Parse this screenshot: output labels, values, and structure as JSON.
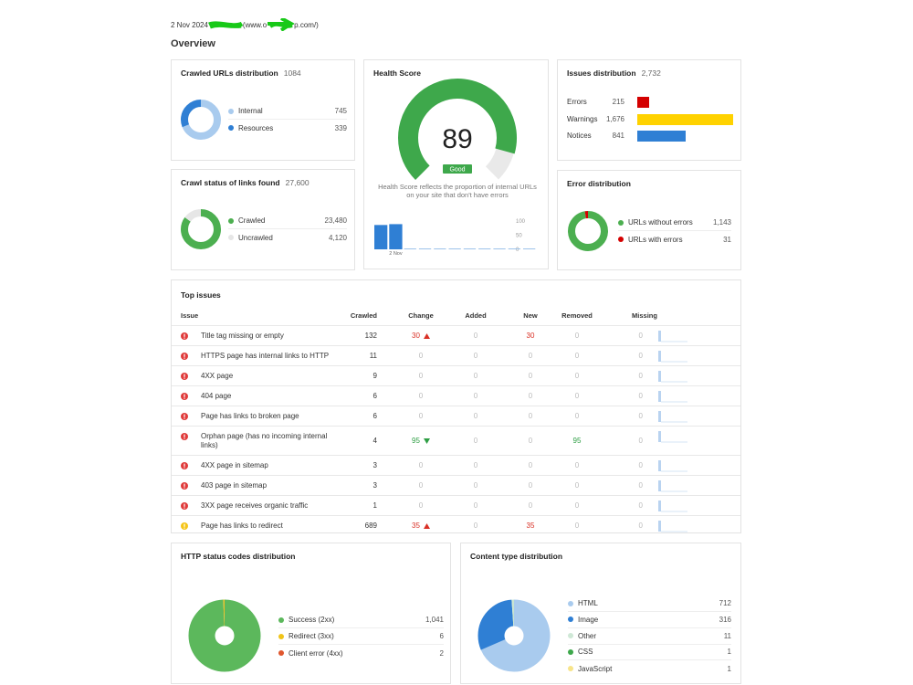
{
  "header": {
    "date": "2 Nov 2024",
    "url_start": "(www.o",
    "url_end": "p.com/)"
  },
  "title": "Overview",
  "crawled_urls": {
    "title": "Crawled URLs distribution",
    "total": 1084,
    "items": [
      {
        "label": "Internal",
        "value": 745,
        "color": "#a9cbee"
      },
      {
        "label": "Resources",
        "value": 339,
        "color": "#2f7fd4"
      }
    ]
  },
  "crawl_status": {
    "title": "Crawl status of links found",
    "total": {
      "value": 27600,
      "label": "27,600"
    },
    "items": [
      {
        "label": "Crawled",
        "value": {
          "value": 23480,
          "label": "23,480"
        },
        "color": "#4caf50"
      },
      {
        "label": "Uncrawled",
        "value": {
          "value": 4120,
          "label": "4,120"
        },
        "color": "#e6e6e6"
      }
    ]
  },
  "health": {
    "title": "Health Score",
    "score": 89,
    "badge": "Good",
    "color": "#3ea84b",
    "description": "Health Score reflects the proportion of internal URLs on your site that don't have errors",
    "history": {
      "categories": [
        null,
        "2 Nov",
        null,
        null,
        null,
        null,
        null,
        null,
        null,
        null,
        null
      ],
      "values": [
        86,
        89,
        null,
        null,
        null,
        null,
        null,
        null,
        null,
        null,
        null
      ],
      "ylim": [
        0,
        100
      ],
      "yticks": [
        0,
        50,
        100
      ],
      "color": "#2f7fd4"
    }
  },
  "issues_distribution": {
    "title": "Issues distribution",
    "total": {
      "value": 2732,
      "label": "2,732"
    },
    "items": [
      {
        "label": "Errors",
        "value": 215,
        "color": "#d40000"
      },
      {
        "label": "Warnings",
        "value": {
          "value": 1676,
          "label": "1,676"
        },
        "color": "#ffd200"
      },
      {
        "label": "Notices",
        "value": 841,
        "color": "#2f7fd4"
      }
    ]
  },
  "error_distribution": {
    "title": "Error distribution",
    "items": [
      {
        "label": "URLs without errors",
        "value": {
          "value": 1143,
          "label": "1,143"
        },
        "color": "#4caf50"
      },
      {
        "label": "URLs with errors",
        "value": 31,
        "color": "#d40000"
      }
    ]
  },
  "top_issues": {
    "title": "Top issues",
    "columns": [
      "Issue",
      "Crawled",
      "Change",
      "Added",
      "New",
      "Removed",
      "Missing"
    ],
    "rows": [
      {
        "severity": "error",
        "issue": "Title tag missing or empty",
        "crawled": 132,
        "change": 30,
        "change_direction": "up",
        "added": 0,
        "new": 30,
        "removed": 0,
        "missing": 0
      },
      {
        "severity": "error",
        "issue": "HTTPS page has internal links to HTTP",
        "crawled": 11,
        "change": 0,
        "added": 0,
        "new": 0,
        "removed": 0,
        "missing": 0
      },
      {
        "severity": "error",
        "issue": "4XX page",
        "crawled": 9,
        "change": 0,
        "added": 0,
        "new": 0,
        "removed": 0,
        "missing": 0
      },
      {
        "severity": "error",
        "issue": "404 page",
        "crawled": 6,
        "change": 0,
        "added": 0,
        "new": 0,
        "removed": 0,
        "missing": 0
      },
      {
        "severity": "error",
        "issue": "Page has links to broken page",
        "crawled": 6,
        "change": 0,
        "added": 0,
        "new": 0,
        "removed": 0,
        "missing": 0
      },
      {
        "severity": "error",
        "issue": "Orphan page (has no incoming internal links)",
        "crawled": 4,
        "change": 95,
        "change_direction": "down",
        "added": 0,
        "new": 0,
        "removed": 95,
        "missing": 0
      },
      {
        "severity": "error",
        "issue": "4XX page in sitemap",
        "crawled": 3,
        "change": 0,
        "added": 0,
        "new": 0,
        "removed": 0,
        "missing": 0
      },
      {
        "severity": "error",
        "issue": "403 page in sitemap",
        "crawled": 3,
        "change": 0,
        "added": 0,
        "new": 0,
        "removed": 0,
        "missing": 0
      },
      {
        "severity": "error",
        "issue": "3XX page receives organic traffic",
        "crawled": 1,
        "change": 0,
        "added": 0,
        "new": 0,
        "removed": 0,
        "missing": 0
      },
      {
        "severity": "warning",
        "issue": "Page has links to redirect",
        "crawled": 689,
        "change": 35,
        "change_direction": "up",
        "added": 0,
        "new": 35,
        "removed": 0,
        "missing": 0
      }
    ]
  },
  "http_status": {
    "title": "HTTP status codes distribution",
    "items": [
      {
        "label": "Success (2xx)",
        "value": {
          "value": 1041,
          "label": "1,041"
        },
        "color": "#5cb85c"
      },
      {
        "label": "Redirect (3xx)",
        "value": 6,
        "color": "#f0c419"
      },
      {
        "label": "Client error (4xx)",
        "value": 2,
        "color": "#e0572e"
      }
    ]
  },
  "content_type": {
    "title": "Content type distribution",
    "items": [
      {
        "label": "HTML",
        "value": 712,
        "color": "#a9cbee"
      },
      {
        "label": "Image",
        "value": 316,
        "color": "#2f7fd4"
      },
      {
        "label": "Other",
        "value": 11,
        "color": "#cfe8d6"
      },
      {
        "label": "CSS",
        "value": 1,
        "color": "#3ea84b"
      },
      {
        "label": "JavaScript",
        "value": 1,
        "color": "#f7e48a"
      }
    ]
  }
}
